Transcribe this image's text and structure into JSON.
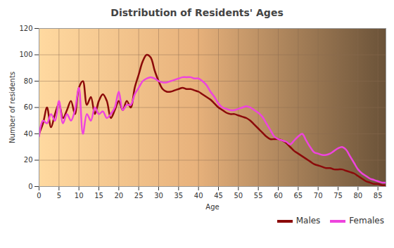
{
  "chart_data": {
    "type": "line",
    "title": "Distribution of Residents' Ages",
    "x_label": "Age",
    "y_label": "Number of residents",
    "x": [
      0,
      1,
      2,
      3,
      4,
      5,
      6,
      7,
      8,
      9,
      10,
      11,
      12,
      13,
      14,
      15,
      16,
      17,
      18,
      19,
      20,
      21,
      22,
      23,
      24,
      25,
      26,
      27,
      28,
      29,
      30,
      31,
      32,
      33,
      34,
      35,
      36,
      37,
      38,
      39,
      40,
      41,
      42,
      43,
      44,
      45,
      46,
      47,
      48,
      49,
      50,
      51,
      52,
      53,
      54,
      55,
      56,
      57,
      58,
      59,
      60,
      61,
      62,
      63,
      64,
      65,
      66,
      67,
      68,
      69,
      70,
      71,
      72,
      73,
      74,
      75,
      76,
      77,
      78,
      79,
      80,
      81,
      82,
      83,
      84,
      85,
      86,
      87
    ],
    "series": [
      {
        "name": "Males",
        "color": "#8b0a0a",
        "values": [
          40,
          48,
          60,
          45,
          55,
          63,
          52,
          58,
          65,
          55,
          75,
          80,
          62,
          68,
          55,
          65,
          70,
          65,
          52,
          58,
          65,
          58,
          65,
          60,
          75,
          85,
          95,
          100,
          98,
          88,
          80,
          74,
          72,
          72,
          73,
          74,
          75,
          74,
          74,
          73,
          72,
          70,
          68,
          66,
          63,
          60,
          58,
          56,
          55,
          55,
          54,
          53,
          52,
          50,
          47,
          44,
          41,
          38,
          36,
          36,
          36,
          35,
          33,
          30,
          27,
          25,
          23,
          21,
          19,
          17,
          16,
          15,
          14,
          14,
          13,
          13,
          13,
          12,
          11,
          10,
          8,
          6,
          4,
          3,
          2,
          2,
          1,
          1
        ]
      },
      {
        "name": "Females",
        "color": "#ee44dd",
        "values": [
          38,
          50,
          48,
          55,
          50,
          65,
          48,
          55,
          50,
          58,
          75,
          40,
          55,
          50,
          60,
          55,
          57,
          52,
          55,
          60,
          72,
          58,
          62,
          62,
          70,
          75,
          80,
          82,
          83,
          82,
          80,
          79,
          79,
          80,
          81,
          82,
          83,
          83,
          83,
          82,
          82,
          80,
          77,
          72,
          68,
          63,
          60,
          59,
          58,
          58,
          59,
          60,
          61,
          60,
          58,
          56,
          53,
          48,
          43,
          38,
          36,
          35,
          34,
          32,
          35,
          38,
          40,
          35,
          30,
          26,
          25,
          24,
          24,
          25,
          27,
          29,
          30,
          28,
          23,
          18,
          13,
          10,
          8,
          6,
          5,
          4,
          3,
          3
        ]
      }
    ],
    "xlim": [
      0,
      87
    ],
    "xticks": [
      0,
      5,
      10,
      15,
      20,
      25,
      30,
      35,
      40,
      45,
      50,
      55,
      60,
      65,
      70,
      75,
      80,
      85
    ],
    "ylim": [
      0,
      120
    ],
    "yticks": [
      0,
      20,
      40,
      60,
      80,
      100,
      120
    ],
    "grid": true,
    "legend": "bottom-right"
  }
}
